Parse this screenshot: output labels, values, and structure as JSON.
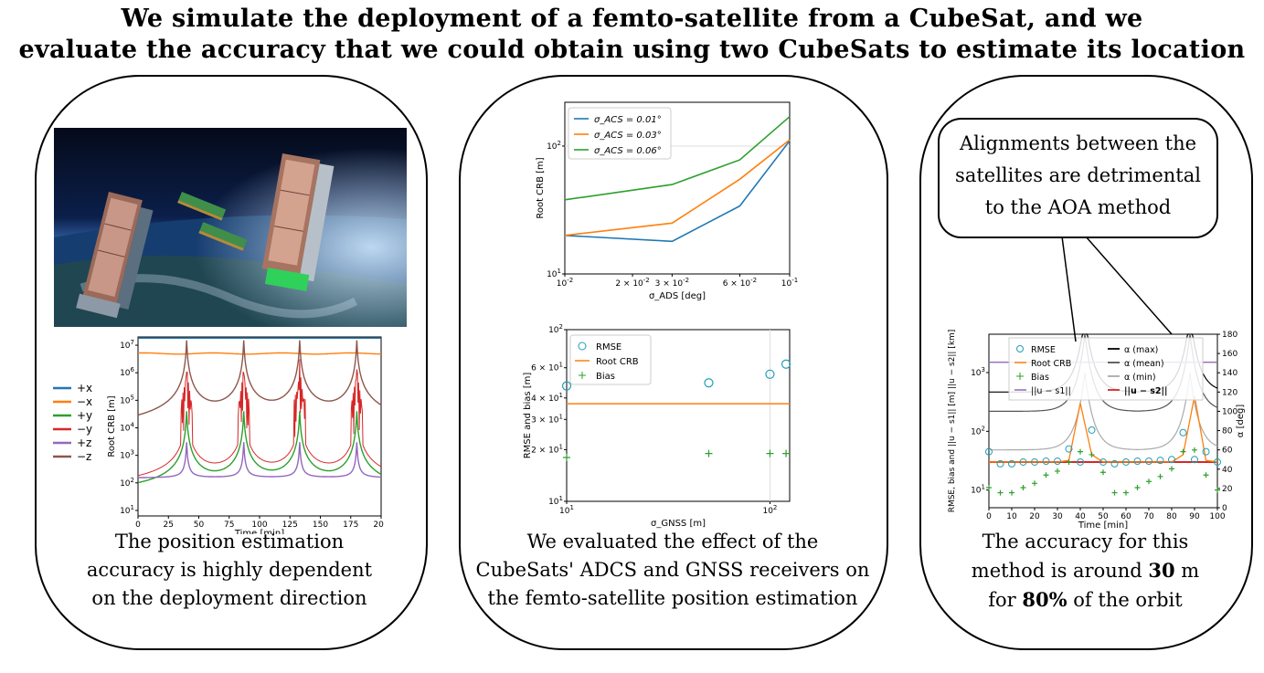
{
  "title": {
    "line1": "We simulate the deployment of a femto-satellite from a CubeSat, and we",
    "line2": "evaluate the accuracy that we could obtain using two CubeSats to estimate its location"
  },
  "panel1": {
    "caption_line1": "The position estimation",
    "caption_line2": "accuracy is highly dependent",
    "caption_line3": "on the deployment direction"
  },
  "panel2": {
    "caption_line1": "We evaluated the effect of the",
    "caption_line2": "CubeSats' ADCS and GNSS receivers on",
    "caption_line3": "the femto-satellite position estimation"
  },
  "panel3": {
    "bubble_line1": "Alignments between the",
    "bubble_line2": "satellites are detrimental",
    "bubble_line3": "to the AOA method",
    "caption_line1": "The accuracy for this",
    "caption_line2_pre": "method is around ",
    "caption_line2_bold": "30",
    "caption_line2_post": " m",
    "caption_line3_pre": "for ",
    "caption_line3_bold": "80%",
    "caption_line3_post": " of the orbit"
  },
  "chart_data": [
    {
      "type": "line",
      "xlabel": "Time [min]",
      "ylabel": "Root CRB [m]",
      "xlim": [
        0,
        200
      ],
      "ylim_log10": [
        0.8,
        7.3
      ],
      "x_ticks": [
        "0",
        "25",
        "50",
        "75",
        "100",
        "125",
        "150",
        "175",
        "200"
      ],
      "y_ticks": [
        "10^1",
        "10^2",
        "10^3",
        "10^4",
        "10^5",
        "10^6",
        "10^7"
      ],
      "legend_placement": "left-outside",
      "series": [
        {
          "name": "+x",
          "color": "#1f77b4",
          "baseline": 22000000.0
        },
        {
          "name": "−x",
          "color": "#ff7f0e",
          "baseline": 5000000.0
        },
        {
          "name": "+y",
          "color": "#2ca02c",
          "baseline": 30,
          "spike_times": [
            40,
            87,
            133,
            180
          ],
          "spike_peak": 40000.0
        },
        {
          "name": "−y",
          "color": "#d62728",
          "baseline": 40,
          "spike_times": [
            40,
            87,
            133,
            180
          ],
          "spike_peak": 80000.0
        },
        {
          "name": "+z",
          "color": "#9467bd",
          "baseline": 150,
          "spike_times": [
            40,
            87,
            133,
            180
          ],
          "spike_peak": 3000.0
        },
        {
          "name": "−z",
          "color": "#8c564b",
          "baseline": 2000,
          "spike_times": [
            40,
            87,
            133,
            180
          ],
          "spike_peak": 15000000.0
        }
      ]
    },
    {
      "type": "line",
      "xlabel": "σ_ADS [deg]",
      "ylabel": "Root CRB [m]",
      "x_ticks": [
        "10^-2",
        "2 × 10^-2",
        "3 × 10^-2",
        "6 × 10^-2",
        "10^-1"
      ],
      "y_ticks": [
        "10^1",
        "10^2"
      ],
      "legend_placement": "top-left",
      "x": [
        0.01,
        0.03,
        0.06,
        0.1
      ],
      "series": [
        {
          "name": "σ_ACS = 0.01°",
          "color": "#1f77b4",
          "values": [
            20,
            18,
            34,
            110
          ]
        },
        {
          "name": "σ_ACS = 0.03°",
          "color": "#ff7f0e",
          "values": [
            20,
            25,
            55,
            112
          ]
        },
        {
          "name": "σ_ACS = 0.06°",
          "color": "#2ca02c",
          "values": [
            38,
            50,
            78,
            170
          ]
        }
      ]
    },
    {
      "type": "scatter",
      "xlabel": "σ_GNSS [m]",
      "ylabel": "RMSE and bias [m]",
      "x_ticks": [
        "10^1",
        "10^2"
      ],
      "y_ticks": [
        "10^1",
        "2 × 10^1",
        "3 × 10^1",
        "4 × 10^1",
        "6 × 10^1",
        "10^2"
      ],
      "legend_placement": "top-left",
      "x": [
        10,
        50,
        100,
        120
      ],
      "series": [
        {
          "name": "RMSE",
          "color": "#1f9eb4",
          "values": [
            47,
            49,
            55,
            63
          ]
        },
        {
          "name": "Root CRB",
          "color": "#ff7f0e",
          "values": [
            37,
            37,
            37,
            37
          ]
        },
        {
          "name": "Bias",
          "color": "#2ca02c",
          "values": [
            18,
            19,
            19,
            19
          ]
        }
      ]
    },
    {
      "type": "line",
      "xlabel": "Time [min]",
      "ylabel": "RMSE, bias and ||u − s1|| [m] ||u − s2|| [km]",
      "y2label": "α [deg]",
      "x_ticks": [
        "0",
        "10",
        "20",
        "30",
        "40",
        "50",
        "60",
        "70",
        "80",
        "90",
        "100"
      ],
      "y_ticks": [
        "10^1",
        "10^2",
        "10^3"
      ],
      "y2_ticks": [
        "0",
        "20",
        "40",
        "60",
        "80",
        "100",
        "120",
        "140",
        "160",
        "180"
      ],
      "legend_placement": "top",
      "x": [
        0,
        5,
        10,
        15,
        20,
        25,
        30,
        35,
        40,
        45,
        50,
        55,
        60,
        65,
        70,
        75,
        80,
        85,
        90,
        95,
        100
      ],
      "series": [
        {
          "name": "RMSE",
          "color": "#1f9eb4",
          "values": [
            45,
            28,
            28,
            30,
            30,
            31,
            31,
            50,
            30,
            105,
            30,
            28,
            30,
            31,
            31,
            32,
            33,
            95,
            33,
            45,
            30
          ]
        },
        {
          "name": "Root CRB",
          "color": "#ff7f0e",
          "values": [
            30,
            30,
            30,
            30,
            30,
            30,
            30,
            32,
            300,
            40,
            30,
            30,
            30,
            30,
            30,
            30,
            30,
            40,
            400,
            32,
            30
          ]
        },
        {
          "name": "Bias",
          "color": "#2ca02c",
          "values": [
            11,
            9,
            9,
            11,
            13,
            18,
            21,
            30,
            45,
            40,
            20,
            9,
            9,
            11,
            14,
            17,
            23,
            45,
            48,
            18,
            10
          ]
        },
        {
          "name": "||u − s1||",
          "color": "#9467bd",
          "values": [
            1500,
            1500,
            1500,
            1500,
            1500,
            1500,
            1500,
            1500,
            1500,
            1500,
            1500,
            1500,
            1500,
            1500,
            1500,
            1500,
            1500,
            1500,
            1500,
            1500,
            1500
          ]
        },
        {
          "name": "α (max)",
          "color": "#000000",
          "axis": "right"
        },
        {
          "name": "α (mean)",
          "color": "#555555",
          "axis": "right"
        },
        {
          "name": "α (min)",
          "color": "#aaaaaa",
          "axis": "right"
        },
        {
          "name": "||u − s2||",
          "color": "#d62728",
          "values": [
            30,
            30,
            30,
            30,
            30,
            30,
            30,
            30,
            30,
            30,
            30,
            30,
            30,
            30,
            30,
            30,
            30,
            30,
            30,
            30,
            30
          ]
        }
      ]
    }
  ]
}
